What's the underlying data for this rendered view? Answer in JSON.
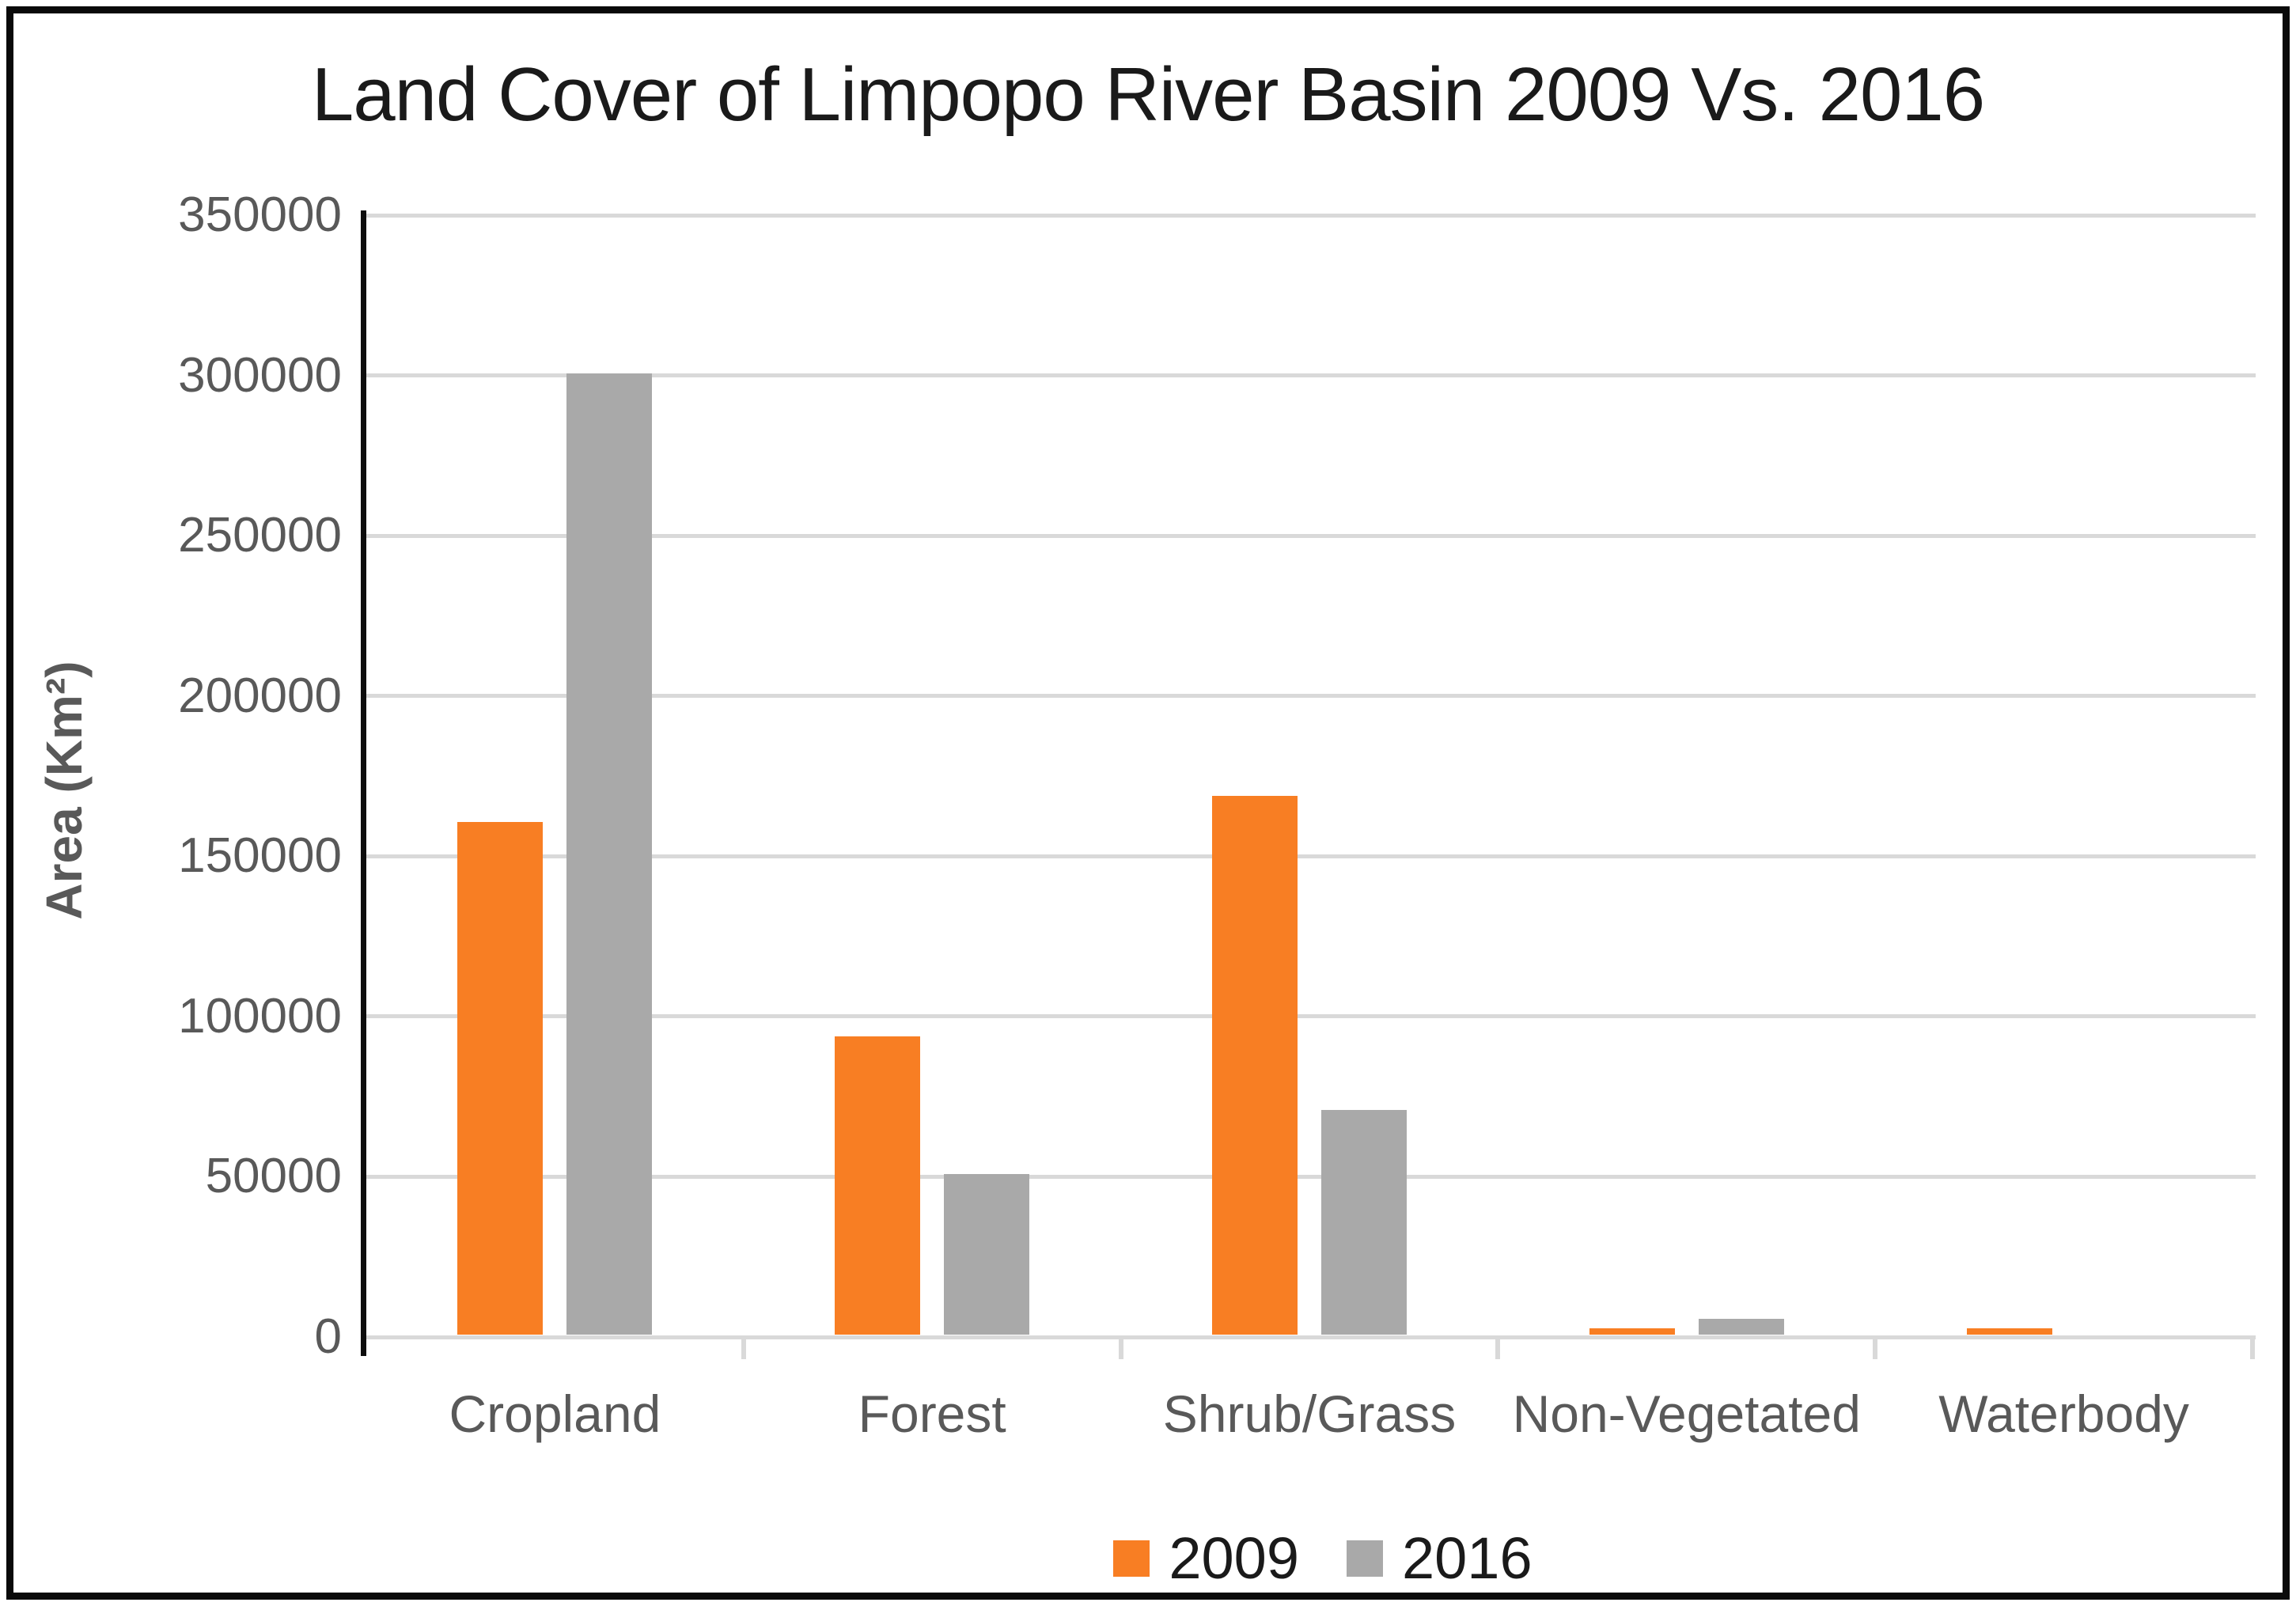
{
  "title": "Land Cover of Limpopo River Basin 2009 Vs. 2016",
  "y_axis": {
    "title": "Area (Km²)",
    "tick_labels": [
      "0",
      "50000",
      "100000",
      "150000",
      "200000",
      "250000",
      "300000",
      "350000"
    ]
  },
  "x_axis": {
    "category_labels": [
      "Cropland",
      "Forest",
      "Shrub/Grass",
      "Non-Vegetated",
      "Waterbody"
    ]
  },
  "legend": {
    "items": [
      {
        "label": "2009",
        "color": "#F87E23"
      },
      {
        "label": "2016",
        "color": "#A9A9A9"
      }
    ]
  },
  "colors": {
    "series_2009": "#F87E23",
    "series_2016": "#A9A9A9",
    "gridline": "#d9d9d9",
    "axis_line": "#0d0d0d",
    "tick_text": "#595959",
    "title_text": "#1a1a1a",
    "frame_border": "#0a0a0a"
  },
  "chart_data": {
    "type": "bar",
    "title": "Land Cover of Limpopo River Basin 2009 Vs. 2016",
    "categories": [
      "Cropland",
      "Forest",
      "Shrub/Grass",
      "Non-Vegetated",
      "Waterbody"
    ],
    "series": [
      {
        "name": "2009",
        "color": "#F87E23",
        "values": [
          160000,
          93000,
          168000,
          2000,
          2000
        ]
      },
      {
        "name": "2016",
        "color": "#A9A9A9",
        "values": [
          300000,
          50000,
          70000,
          5000,
          0
        ]
      }
    ],
    "xlabel": "",
    "ylabel": "Area (Km²)",
    "ylim": [
      0,
      350000
    ],
    "ytick_step": 50000,
    "grid": true,
    "legend_position": "bottom"
  }
}
